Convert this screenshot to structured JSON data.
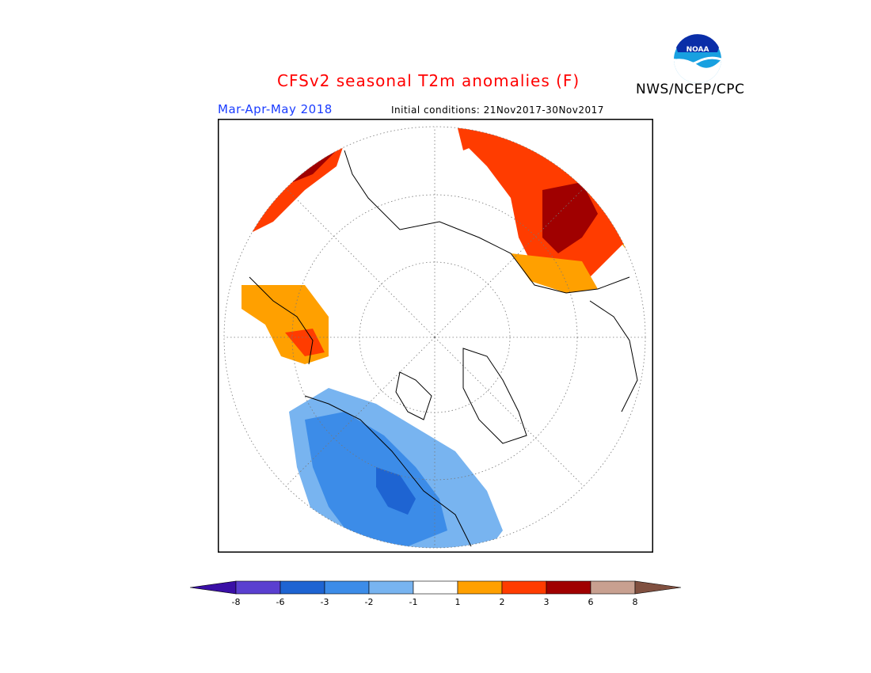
{
  "header": {
    "title": "CFSv2 seasonal T2m anomalies (F)",
    "agency": "NWS/NCEP/CPC",
    "season": "Mar-Apr-May 2018",
    "initial_conditions": "Initial conditions: 21Nov2017-30Nov2017",
    "logo_text": "NOAA"
  },
  "colorbar": {
    "tick_labels": [
      "-8",
      "-6",
      "-3",
      "-2",
      "-1",
      "1",
      "2",
      "3",
      "6",
      "8"
    ],
    "colors": [
      "#3a0fa6",
      "#5a3fd0",
      "#1e64d2",
      "#3c8ce8",
      "#78b4f0",
      "#ffffff",
      "#ffa000",
      "#ff3c00",
      "#a00000",
      "#c8a090",
      "#805040"
    ]
  },
  "map": {
    "projection": "north-polar-stereographic",
    "anomaly_colors": {
      "warm_1_2": "#ffa000",
      "warm_2_3": "#ff3c00",
      "warm_3_6": "#a00000",
      "cool_m1_m2": "#78b4f0",
      "cool_m2_m3": "#3c8ce8",
      "cool_m3_m6": "#1e64d2"
    }
  }
}
